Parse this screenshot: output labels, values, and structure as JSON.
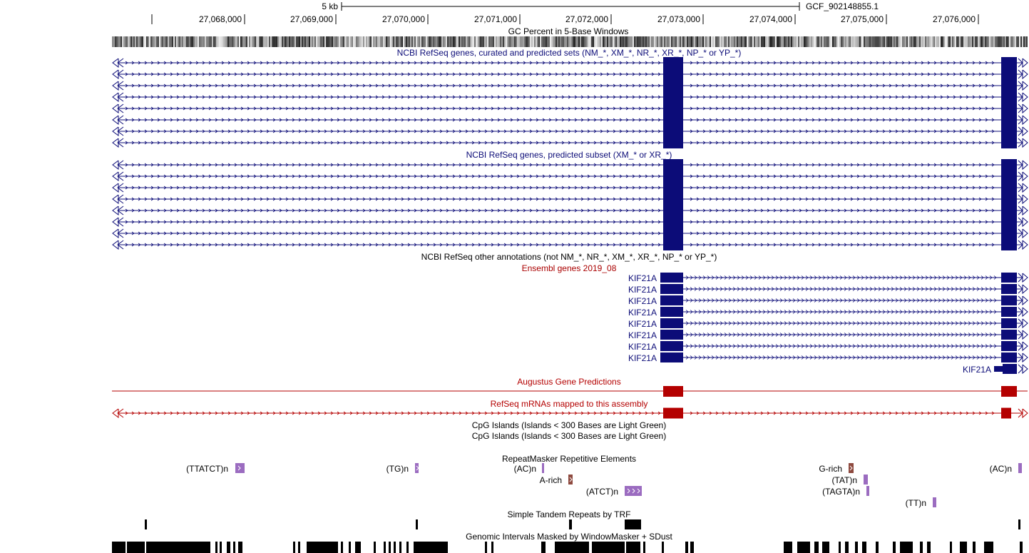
{
  "colors": {
    "refseq": "#0c0c78",
    "ensembl_label": "#aa0000",
    "augustus": "#b40000",
    "black": "#000000",
    "repeat_purple": "#9b6cc0",
    "repeat_brown": "#8e4a3f"
  },
  "ruler": {
    "scale_label": "5 kb",
    "assembly": "GCF_902148855.1",
    "ticks": [
      "27,068,000",
      "27,069,000",
      "27,070,000",
      "27,071,000",
      "27,072,000",
      "27,073,000",
      "27,074,000",
      "27,075,000",
      "27,076,000"
    ]
  },
  "tracks": {
    "gc": {
      "title": "GC Percent in 5-Base Windows"
    },
    "refseq_all": {
      "title": "NCBI RefSeq genes, curated and predicted sets (NM_*, XM_*, NR_*, XR_*, NP_* or YP_*)",
      "rows": 8
    },
    "refseq_predicted": {
      "title": "NCBI RefSeq genes, predicted subset (XM_* or XR_*)",
      "rows": 8
    },
    "refseq_other": {
      "title": "NCBI RefSeq other annotations (not NM_*, NR_*, XM_*, XR_*, NP_* or YP_*)"
    },
    "ensembl": {
      "title": "Ensembl genes 2019_08",
      "genes": [
        "KIF21A",
        "KIF21A",
        "KIF21A",
        "KIF21A",
        "KIF21A",
        "KIF21A",
        "KIF21A",
        "KIF21A",
        "KIF21A"
      ]
    },
    "augustus": {
      "title": "Augustus Gene Predictions"
    },
    "refseq_mrna": {
      "title": "RefSeq mRNAs mapped to this assembly"
    },
    "cpg1": {
      "title": "CpG Islands (Islands < 300 Bases are Light Green)"
    },
    "cpg2": {
      "title": "CpG Islands (Islands < 300 Bases are Light Green)"
    },
    "repeatmasker": {
      "title": "RepeatMasker Repetitive Elements",
      "labels": [
        "(TTATCT)n",
        "(TG)n",
        "(AC)n",
        "A-rich",
        "(ATCT)n",
        "G-rich",
        "(TAT)n",
        "(TAGTA)n",
        "(TT)n",
        "(AC)n"
      ]
    },
    "trf": {
      "title": "Simple Tandem Repeats by TRF"
    },
    "windowmasker": {
      "title": "Genomic Intervals Masked by WindowMasker + SDust"
    }
  }
}
